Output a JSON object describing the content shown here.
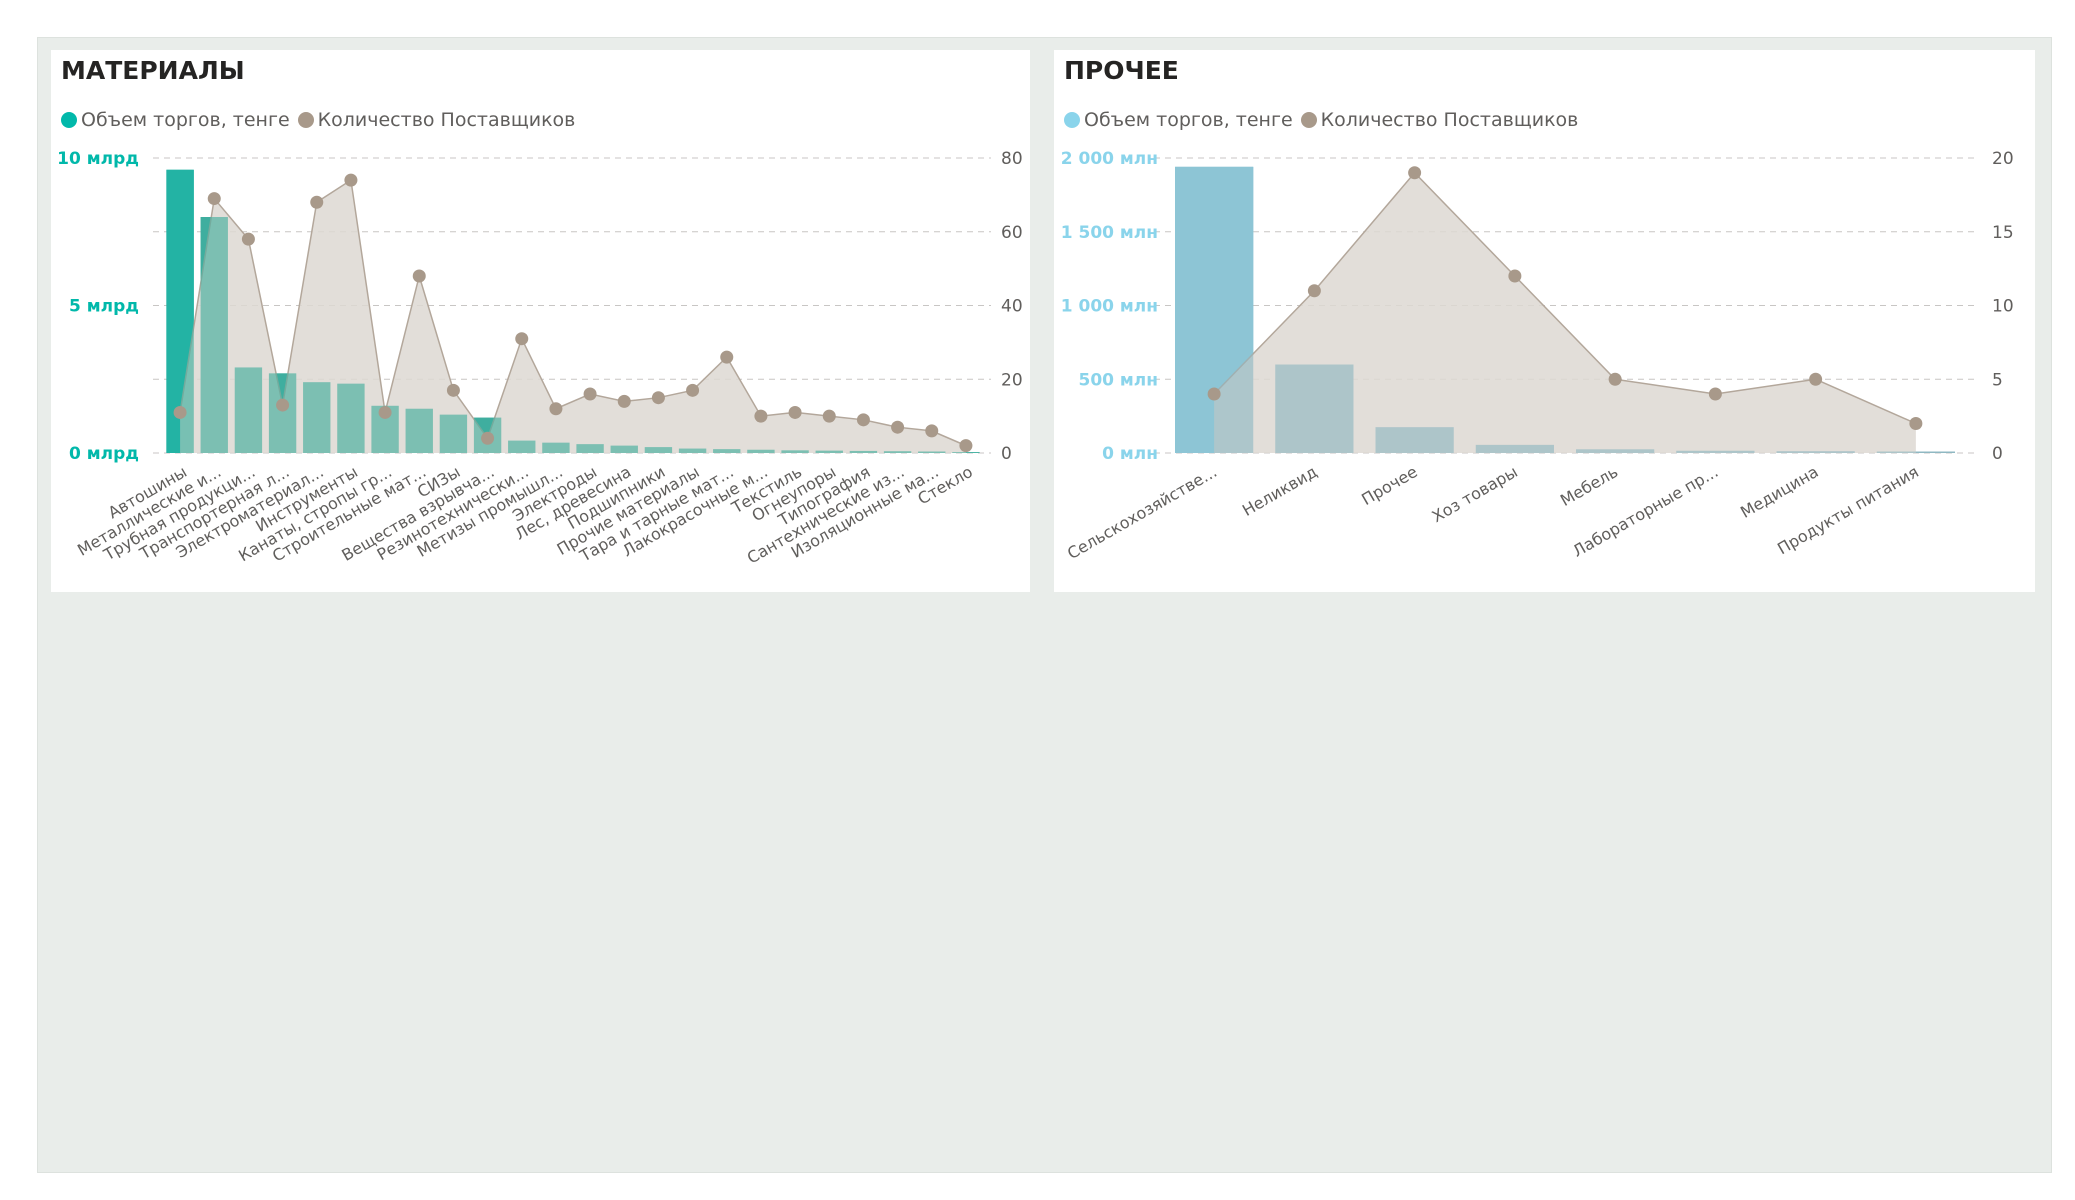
{
  "colors": {
    "area": "#ddd8d2",
    "area_line": "#b3a79b",
    "marker": "#a8998a",
    "grid": "#c8c6c4"
  },
  "chart_data": [
    {
      "id": "materials",
      "type": "bar+area",
      "title": "МАТЕРИАЛЫ",
      "legend": [
        "Объем торгов, тенге",
        "Количество Поставщиков"
      ],
      "legend_placement": "top-left",
      "bar_color": "#3fae9f",
      "bar_highlight_color": "#01b8aa",
      "axis_left_color": "#01b8aa",
      "categories": [
        "Автошины",
        "Металлические и...",
        "Трубная продукци...",
        "Транспортерная л...",
        "Электроматериал...",
        "Инструменты",
        "Канаты, стропы гр...",
        "Строительные мат...",
        "СИЗы",
        "Вещества взрывча...",
        "Резинотехнически...",
        "Метизы промышл...",
        "Электроды",
        "Лес, древесина",
        "Подшипники",
        "Прочие материалы",
        "Тара и тарные мат...",
        "Лакокрасочные м...",
        "Текстиль",
        "Огнеупоры",
        "Типография",
        "Сантехнические из...",
        "Изоляционные ма...",
        "Стекло"
      ],
      "series": [
        {
          "name": "Объем торгов, тенге",
          "axis": "left",
          "kind": "bar",
          "values": [
            9600000000,
            8000000000,
            2900000000,
            2700000000,
            2400000000,
            2350000000,
            1600000000,
            1500000000,
            1300000000,
            1200000000,
            420000000,
            350000000,
            300000000,
            250000000,
            200000000,
            150000000,
            130000000,
            110000000,
            90000000,
            80000000,
            70000000,
            60000000,
            50000000,
            30000000
          ]
        },
        {
          "name": "Количество Поставщиков",
          "axis": "right",
          "kind": "area",
          "values": [
            11,
            69,
            58,
            13,
            68,
            74,
            11,
            48,
            17,
            4,
            31,
            12,
            16,
            14,
            15,
            17,
            26,
            10,
            11,
            10,
            9,
            7,
            6,
            2
          ]
        }
      ],
      "y_left": {
        "min": 0,
        "max": 10000000000,
        "ticks": [
          0,
          5000000000,
          10000000000
        ],
        "tick_labels": [
          "0 млрд",
          "5 млрд",
          "10 млрд"
        ]
      },
      "y_right": {
        "min": 0,
        "max": 80,
        "ticks": [
          0,
          20,
          40,
          60,
          80
        ],
        "tick_labels": [
          "0",
          "20",
          "40",
          "60",
          "80"
        ]
      },
      "grid": true
    },
    {
      "id": "other",
      "type": "bar+area",
      "title": "ПРОЧЕЕ",
      "legend": [
        "Объем торгов, тенге",
        "Количество Поставщиков"
      ],
      "legend_placement": "top-left",
      "bar_color": "#8fb8c2",
      "bar_highlight_color": "#8ad4eb",
      "axis_left_color": "#8ad4eb",
      "categories": [
        "Сельскохозяйстве...",
        "Неликвид",
        "Прочее",
        "Хоз товары",
        "Мебель",
        "Лабораторные пр...",
        "Медицина",
        "Продукты питания"
      ],
      "series": [
        {
          "name": "Объем торгов, тенге",
          "axis": "left",
          "kind": "bar",
          "values": [
            1940000000,
            600000000,
            175000000,
            55000000,
            25000000,
            15000000,
            12000000,
            10000000
          ]
        },
        {
          "name": "Количество Поставщиков",
          "axis": "right",
          "kind": "area",
          "values": [
            4,
            11,
            19,
            12,
            5,
            4,
            5,
            2
          ]
        }
      ],
      "y_left": {
        "min": 0,
        "max": 2000000000,
        "ticks": [
          0,
          500000000,
          1000000000,
          1500000000,
          2000000000
        ],
        "tick_labels": [
          "0 млн",
          "500 млн",
          "1 000 млн",
          "1 500 млн",
          "2 000 млн"
        ]
      },
      "y_right": {
        "min": 0,
        "max": 20,
        "ticks": [
          0,
          5,
          10,
          15,
          20
        ],
        "tick_labels": [
          "0",
          "5",
          "10",
          "15",
          "20"
        ]
      },
      "grid": true
    }
  ]
}
